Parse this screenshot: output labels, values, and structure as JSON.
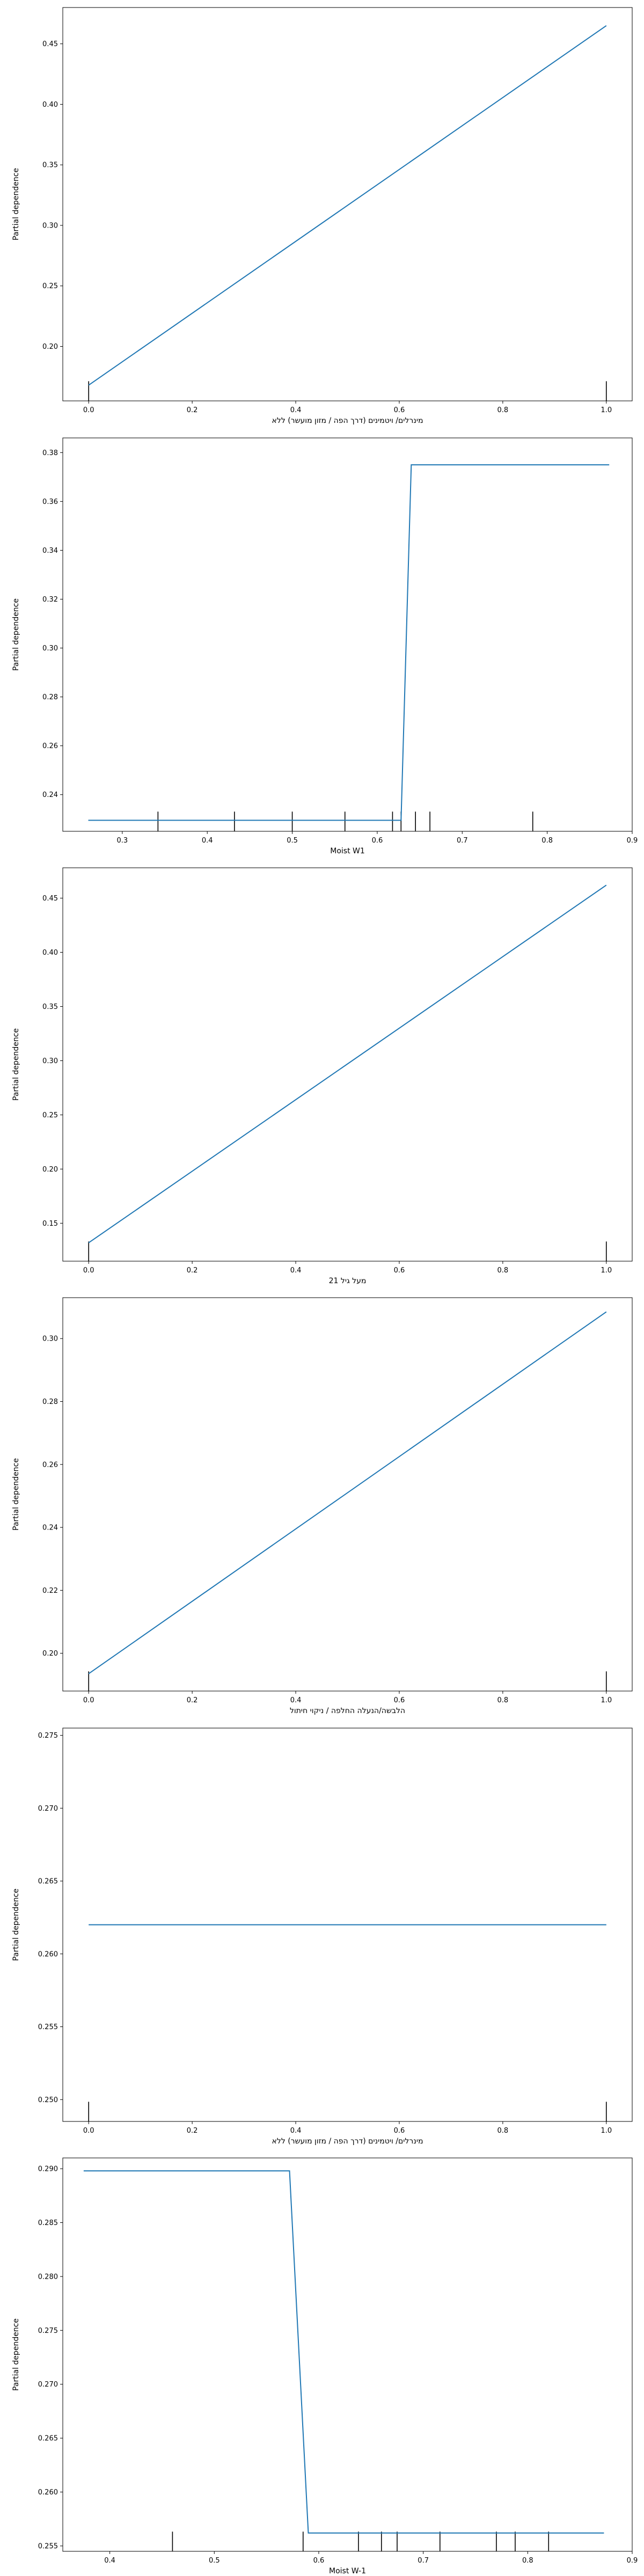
{
  "chart_data": [
    {
      "type": "line",
      "xlabel": "מינרלים/ ויטמינים (דרך הפה / מזון מועשר) ללא",
      "ylabel": "Partial dependence",
      "xlim": [
        -0.05,
        1.05
      ],
      "ylim": [
        0.155,
        0.48
      ],
      "xticks": [
        "0.0",
        "0.2",
        "0.4",
        "0.6",
        "0.8",
        "1.0"
      ],
      "xtick_values": [
        0,
        0.2,
        0.4,
        0.6,
        0.8,
        1.0
      ],
      "yticks": [
        "0.20",
        "0.25",
        "0.30",
        "0.35",
        "0.40",
        "0.45"
      ],
      "ytick_values": [
        0.2,
        0.25,
        0.3,
        0.35,
        0.4,
        0.45
      ],
      "series": [
        {
          "x": [
            0,
            1
          ],
          "y": [
            0.168,
            0.465
          ]
        }
      ],
      "deciles": [
        0,
        1
      ],
      "line_color": "#1f77b4"
    },
    {
      "type": "line",
      "xlabel": "Moist W1",
      "ylabel": "Partial dependence",
      "xlim": [
        0.23,
        0.9
      ],
      "ylim": [
        0.225,
        0.386
      ],
      "xticks": [
        "0.3",
        "0.4",
        "0.5",
        "0.6",
        "0.7",
        "0.8",
        "0.9"
      ],
      "xtick_values": [
        0.3,
        0.4,
        0.5,
        0.6,
        0.7,
        0.8,
        0.9
      ],
      "yticks": [
        "0.24",
        "0.26",
        "0.28",
        "0.30",
        "0.32",
        "0.34",
        "0.36",
        "0.38"
      ],
      "ytick_values": [
        0.24,
        0.26,
        0.28,
        0.3,
        0.32,
        0.34,
        0.36,
        0.38
      ],
      "series": [
        {
          "x": [
            0.26,
            0.628,
            0.64,
            0.873
          ],
          "y": [
            0.2295,
            0.2295,
            0.375,
            0.375
          ]
        }
      ],
      "deciles": [
        0.342,
        0.432,
        0.5,
        0.562,
        0.618,
        0.628,
        0.645,
        0.662,
        0.783
      ],
      "line_color": "#1f77b4"
    },
    {
      "type": "line",
      "xlabel": "מעל גיל 21",
      "ylabel": "Partial dependence",
      "xlim": [
        -0.05,
        1.05
      ],
      "ylim": [
        0.115,
        0.478
      ],
      "xticks": [
        "0.0",
        "0.2",
        "0.4",
        "0.6",
        "0.8",
        "1.0"
      ],
      "xtick_values": [
        0,
        0.2,
        0.4,
        0.6,
        0.8,
        1.0
      ],
      "yticks": [
        "0.15",
        "0.20",
        "0.25",
        "0.30",
        "0.35",
        "0.40",
        "0.45"
      ],
      "ytick_values": [
        0.15,
        0.2,
        0.25,
        0.3,
        0.35,
        0.4,
        0.45
      ],
      "series": [
        {
          "x": [
            0,
            1
          ],
          "y": [
            0.132,
            0.462
          ]
        }
      ],
      "deciles": [
        0,
        1
      ],
      "line_color": "#1f77b4"
    },
    {
      "type": "line",
      "xlabel": "הלבשה/הנעלה החלפה / ניקוי חיתול",
      "ylabel": "Partial dependence",
      "xlim": [
        -0.05,
        1.05
      ],
      "ylim": [
        0.188,
        0.313
      ],
      "xticks": [
        "0.0",
        "0.2",
        "0.4",
        "0.6",
        "0.8",
        "1.0"
      ],
      "xtick_values": [
        0,
        0.2,
        0.4,
        0.6,
        0.8,
        1.0
      ],
      "yticks": [
        "0.20",
        "0.22",
        "0.24",
        "0.26",
        "0.28",
        "0.30"
      ],
      "ytick_values": [
        0.2,
        0.22,
        0.24,
        0.26,
        0.28,
        0.3
      ],
      "series": [
        {
          "x": [
            0,
            1
          ],
          "y": [
            0.1935,
            0.3085
          ]
        }
      ],
      "deciles": [
        0,
        1
      ],
      "line_color": "#1f77b4"
    },
    {
      "type": "line",
      "xlabel": "מינרלים/ ויטמינים (דרך הפה / מזון מועשר) ללא",
      "ylabel": "Partial dependence",
      "xlim": [
        -0.05,
        1.05
      ],
      "ylim": [
        0.2485,
        0.2755
      ],
      "xticks": [
        "0.0",
        "0.2",
        "0.4",
        "0.6",
        "0.8",
        "1.0"
      ],
      "xtick_values": [
        0,
        0.2,
        0.4,
        0.6,
        0.8,
        1.0
      ],
      "yticks": [
        "0.250",
        "0.255",
        "0.260",
        "0.265",
        "0.270",
        "0.275"
      ],
      "ytick_values": [
        0.25,
        0.255,
        0.26,
        0.265,
        0.27,
        0.275
      ],
      "series": [
        {
          "x": [
            0,
            1
          ],
          "y": [
            0.262,
            0.262
          ]
        }
      ],
      "deciles": [
        0,
        1
      ],
      "line_color": "#1f77b4"
    },
    {
      "type": "line",
      "xlabel": "Moist W-1",
      "ylabel": "Partial dependence",
      "xlim": [
        0.355,
        0.9
      ],
      "ylim": [
        0.2545,
        0.291
      ],
      "xticks": [
        "0.4",
        "0.5",
        "0.6",
        "0.7",
        "0.8",
        "0.9"
      ],
      "xtick_values": [
        0.4,
        0.5,
        0.6,
        0.7,
        0.8,
        0.9
      ],
      "yticks": [
        "0.255",
        "0.260",
        "0.265",
        "0.270",
        "0.275",
        "0.280",
        "0.285",
        "0.290"
      ],
      "ytick_values": [
        0.255,
        0.26,
        0.265,
        0.27,
        0.275,
        0.28,
        0.285,
        0.29
      ],
      "series": [
        {
          "x": [
            0.375,
            0.572,
            0.59,
            0.873
          ],
          "y": [
            0.2898,
            0.2898,
            0.2562,
            0.2562
          ]
        }
      ],
      "deciles": [
        0.46,
        0.585,
        0.638,
        0.66,
        0.675,
        0.716,
        0.77,
        0.788,
        0.82
      ],
      "line_color": "#1f77b4"
    }
  ]
}
